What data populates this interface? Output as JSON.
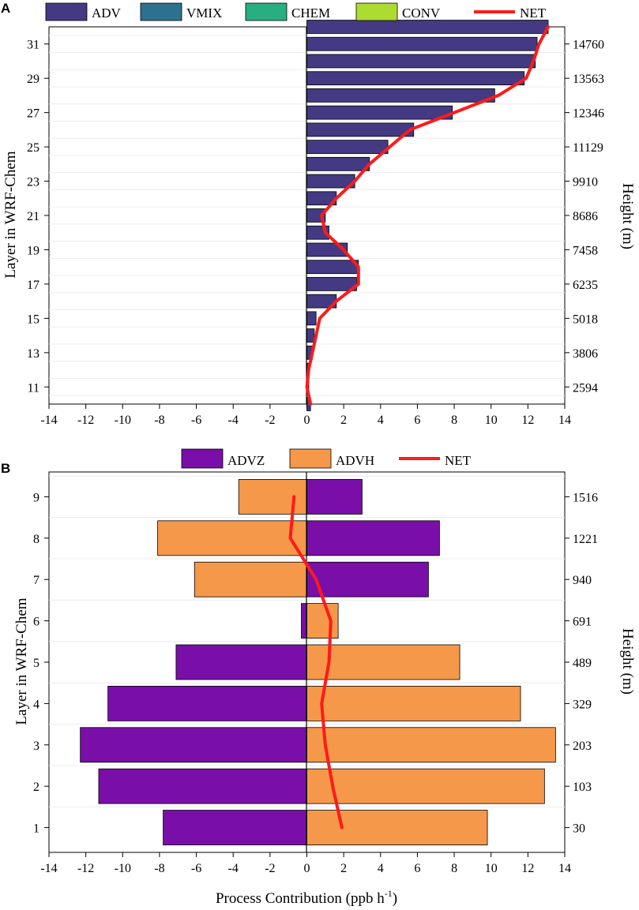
{
  "chart_data": [
    {
      "panel": "A",
      "type": "bar",
      "orientation": "horizontal",
      "ylabel_left": "Layer in WRF-Chem",
      "ylabel_right": "Height (m)",
      "xlim": [
        -14,
        14
      ],
      "x_ticks": [
        "-14",
        "-12",
        "-10",
        "-8",
        "-6",
        "-4",
        "-2",
        "0",
        "2",
        "4",
        "6",
        "8",
        "10",
        "12",
        "14"
      ],
      "x_tick_values": [
        -14,
        -12,
        -10,
        -8,
        -6,
        -4,
        -2,
        0,
        2,
        4,
        6,
        8,
        10,
        12,
        14
      ],
      "layer_range": [
        10,
        32
      ],
      "layers": [
        10,
        11,
        12,
        13,
        14,
        15,
        16,
        17,
        18,
        19,
        20,
        21,
        22,
        23,
        24,
        25,
        26,
        27,
        28,
        29,
        30,
        31,
        32
      ],
      "left_tick_labels": [
        "11",
        "13",
        "15",
        "17",
        "19",
        "21",
        "23",
        "25",
        "27",
        "29",
        "31"
      ],
      "left_tick_values": [
        11,
        13,
        15,
        17,
        19,
        21,
        23,
        25,
        27,
        29,
        31
      ],
      "right_tick_labels": [
        "2594",
        "3806",
        "5018",
        "6235",
        "7458",
        "8686",
        "9910",
        "11129",
        "12346",
        "13563",
        "14760"
      ],
      "legend": [
        "ADV",
        "VMIX",
        "CHEM",
        "CONV",
        "NET"
      ],
      "series": [
        {
          "name": "ADV",
          "color": "#443983",
          "values": [
            0.2,
            0.1,
            0.1,
            0.3,
            0.4,
            0.5,
            1.6,
            2.7,
            2.8,
            2.2,
            1.2,
            1.0,
            1.6,
            2.6,
            3.4,
            4.4,
            5.8,
            7.9,
            10.2,
            11.8,
            12.4,
            12.5,
            13.1
          ]
        },
        {
          "name": "VMIX",
          "color": "#2c728e",
          "values": [
            0,
            0,
            0,
            0,
            0,
            0,
            0,
            0,
            0,
            0,
            0,
            0,
            0,
            0,
            0,
            0,
            0,
            0,
            0,
            0,
            0,
            0,
            0
          ]
        },
        {
          "name": "CHEM",
          "color": "#28ae80",
          "values": [
            0,
            0,
            0,
            0,
            0,
            0,
            0,
            0,
            0,
            0,
            0,
            0,
            0,
            0,
            0,
            0,
            0,
            0,
            0,
            0,
            0,
            0,
            0
          ]
        },
        {
          "name": "CONV",
          "color": "#addc30",
          "values": [
            0,
            0,
            0,
            0,
            0,
            0,
            0,
            0,
            0,
            0,
            0,
            0,
            0,
            0,
            0,
            0,
            0,
            0,
            0,
            0,
            0,
            0,
            0
          ]
        },
        {
          "name": "NET",
          "type": "line",
          "color": "#ff1a1a",
          "values": [
            0.2,
            0.0,
            0.1,
            0.3,
            0.5,
            0.7,
            1.6,
            2.8,
            2.8,
            2.0,
            1.0,
            0.8,
            1.6,
            2.6,
            3.4,
            4.5,
            5.6,
            8.0,
            10.4,
            11.9,
            12.3,
            12.6,
            13.1
          ]
        }
      ]
    },
    {
      "panel": "B",
      "type": "bar",
      "orientation": "horizontal",
      "xlabel": "Process Contribution (ppb h",
      "xlabel_sup": "-1",
      "xlabel_end": ")",
      "ylabel_left": "Layer in WRF-Chem",
      "ylabel_right": "Height (m)",
      "xlim": [
        -14,
        14
      ],
      "x_ticks": [
        "-14",
        "-12",
        "-10",
        "-8",
        "-6",
        "-4",
        "-2",
        "0",
        "2",
        "4",
        "6",
        "8",
        "10",
        "12",
        "14"
      ],
      "x_tick_values": [
        -14,
        -12,
        -10,
        -8,
        -6,
        -4,
        -2,
        0,
        2,
        4,
        6,
        8,
        10,
        12,
        14
      ],
      "layer_range": [
        0.4,
        9.6
      ],
      "layers": [
        1,
        2,
        3,
        4,
        5,
        6,
        7,
        8,
        9
      ],
      "left_tick_labels": [
        "1",
        "2",
        "3",
        "4",
        "5",
        "6",
        "7",
        "8",
        "9"
      ],
      "left_tick_values": [
        1,
        2,
        3,
        4,
        5,
        6,
        7,
        8,
        9
      ],
      "right_tick_labels": [
        "30",
        "103",
        "203",
        "329",
        "489",
        "691",
        "940",
        "1221",
        "1516"
      ],
      "legend": [
        "ADVZ",
        "ADVH",
        "NET"
      ],
      "series": [
        {
          "name": "ADVZ",
          "color": "#7a0ea8",
          "values": [
            -7.8,
            -11.3,
            -12.3,
            -10.8,
            -7.1,
            -0.3,
            6.6,
            7.2,
            3.0
          ]
        },
        {
          "name": "ADVH",
          "color": "#f5984a",
          "values": [
            9.8,
            12.9,
            13.5,
            11.6,
            8.3,
            1.7,
            -6.1,
            -8.1,
            -3.7
          ]
        },
        {
          "name": "NET",
          "type": "line",
          "color": "#ff1a1a",
          "values": [
            1.9,
            1.4,
            1.0,
            0.8,
            1.2,
            1.3,
            0.5,
            -0.9,
            -0.7
          ]
        }
      ]
    }
  ]
}
